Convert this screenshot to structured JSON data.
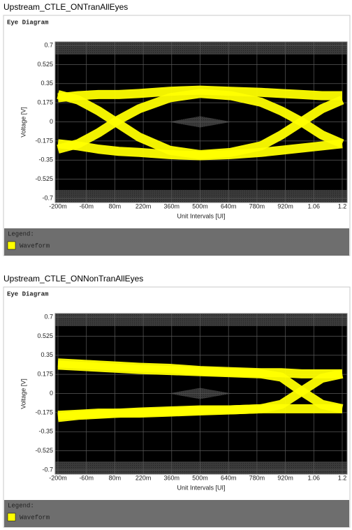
{
  "chart_data": [
    {
      "type": "line",
      "caption": "Upstream_CTLE_ONTranAllEyes",
      "title": "Eye Diagram",
      "xlabel": "Unit Intervals [UI]",
      "ylabel": "Voltage [V]",
      "legend_title": "Legend:",
      "x": [
        -0.2,
        -0.1,
        0,
        0.1,
        0.2,
        0.35,
        0.5,
        0.65,
        0.8,
        0.9,
        1.0,
        1.1,
        1.2
      ],
      "xlim": [
        -0.2,
        1.2
      ],
      "xticks": [
        {
          "value": -0.2,
          "label": "-200m"
        },
        {
          "value": -0.06,
          "label": "-60m"
        },
        {
          "value": 0.08,
          "label": "80m"
        },
        {
          "value": 0.22,
          "label": "220m"
        },
        {
          "value": 0.36,
          "label": "360m"
        },
        {
          "value": 0.5,
          "label": "500m"
        },
        {
          "value": 0.64,
          "label": "640m"
        },
        {
          "value": 0.78,
          "label": "780m"
        },
        {
          "value": 0.92,
          "label": "920m"
        },
        1.06,
        1.2
      ],
      "ylim": [
        -0.7,
        0.7
      ],
      "yticks": [
        0.7,
        0.525,
        0.35,
        0.175,
        0,
        -0.175,
        -0.35,
        -0.525,
        -0.7
      ],
      "grid": true,
      "series": [
        {
          "name": "Waveform",
          "color": "#ffff00",
          "traces": [
            [
              -0.25,
              -0.2,
              -0.1,
              0.02,
              0.12,
              0.22,
              0.26,
              0.24,
              0.18,
              0.1,
              0,
              -0.12,
              -0.2
            ],
            [
              0.25,
              0.2,
              0.1,
              -0.02,
              -0.14,
              -0.26,
              -0.3,
              -0.28,
              -0.22,
              -0.12,
              0,
              0.12,
              0.2
            ],
            [
              0.22,
              0.24,
              0.25,
              0.25,
              0.26,
              0.28,
              0.29,
              0.28,
              0.27,
              0.26,
              0.25,
              0.24,
              0.24
            ],
            [
              -0.2,
              -0.22,
              -0.25,
              -0.27,
              -0.28,
              -0.3,
              -0.31,
              -0.3,
              -0.28,
              -0.26,
              -0.24,
              -0.22,
              -0.2
            ]
          ]
        }
      ]
    },
    {
      "type": "line",
      "caption": "Upstream_CTLE_ONNonTranAllEyes",
      "title": "Eye Diagram",
      "xlabel": "Unit Intervals [UI]",
      "ylabel": "Voltage [V]",
      "legend_title": "Legend:",
      "x": [
        -0.2,
        -0.1,
        0,
        0.1,
        0.2,
        0.35,
        0.5,
        0.65,
        0.8,
        0.9,
        1.0,
        1.1,
        1.2
      ],
      "xlim": [
        -0.2,
        1.2
      ],
      "xticks": [
        {
          "value": -0.2,
          "label": "-200m"
        },
        {
          "value": -0.06,
          "label": "-60m"
        },
        {
          "value": 0.08,
          "label": "80m"
        },
        {
          "value": 0.22,
          "label": "220m"
        },
        {
          "value": 0.36,
          "label": "360m"
        },
        {
          "value": 0.5,
          "label": "500m"
        },
        {
          "value": 0.64,
          "label": "640m"
        },
        {
          "value": 0.78,
          "label": "780m"
        },
        {
          "value": 0.92,
          "label": "920m"
        },
        1.06,
        1.2
      ],
      "ylim": [
        -0.7,
        0.7
      ],
      "yticks": [
        0.7,
        0.525,
        0.35,
        0.175,
        0,
        -0.175,
        -0.35,
        -0.525,
        -0.7
      ],
      "grid": true,
      "series": [
        {
          "name": "Waveform",
          "color": "#ffff00",
          "traces": [
            [
              0.28,
              0.27,
              0.26,
              0.25,
              0.24,
              0.23,
              0.21,
              0.2,
              0.19,
              0.19,
              0.18,
              0.18,
              0.18
            ],
            [
              -0.22,
              -0.2,
              -0.19,
              -0.18,
              -0.18,
              -0.17,
              -0.16,
              -0.15,
              -0.14,
              -0.14,
              -0.14,
              -0.14,
              -0.14
            ],
            [
              0.26,
              0.25,
              0.24,
              0.23,
              0.22,
              0.21,
              0.2,
              0.19,
              0.18,
              0.15,
              0.02,
              -0.1,
              -0.14
            ],
            [
              -0.2,
              -0.19,
              -0.18,
              -0.18,
              -0.17,
              -0.16,
              -0.15,
              -0.15,
              -0.14,
              -0.1,
              0.02,
              0.14,
              0.18
            ]
          ]
        }
      ]
    }
  ]
}
